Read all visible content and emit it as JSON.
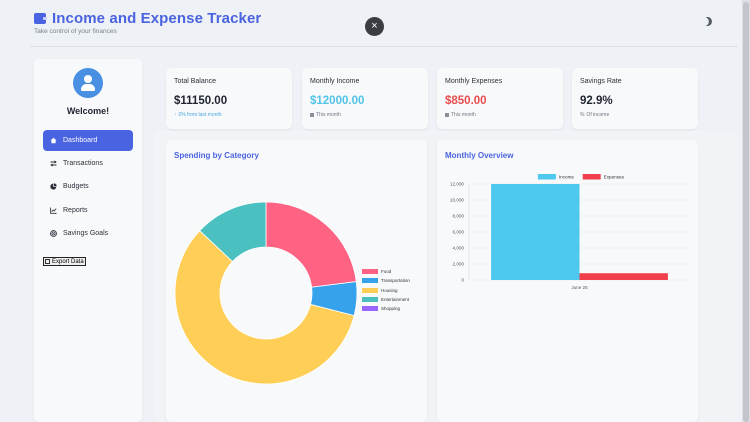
{
  "header": {
    "title": "Income and Expense Tracker",
    "subtitle": "Take control of your finances",
    "close_label": "×",
    "theme_icon": "moon-icon"
  },
  "sidebar": {
    "welcome": "Welcome!",
    "items": [
      {
        "label": "Dashboard",
        "icon": "home-icon",
        "active": true
      },
      {
        "label": "Transactions",
        "icon": "exchange-icon"
      },
      {
        "label": "Budgets",
        "icon": "pie-icon"
      },
      {
        "label": "Reports",
        "icon": "line-chart-icon"
      },
      {
        "label": "Savings Goals",
        "icon": "target-icon"
      }
    ],
    "export_label": "Export Data"
  },
  "stats": [
    {
      "label": "Total Balance",
      "value": "$11150.00",
      "note": "0% from last month",
      "color": "#1f2430",
      "note_color": "#4aa8e0"
    },
    {
      "label": "Monthly Income",
      "value": "$12000.00",
      "note": "This month",
      "color": "#4fc3e8",
      "note_color": "#6e7480"
    },
    {
      "label": "Monthly Expenses",
      "value": "$850.00",
      "note": "This month",
      "color": "#e84d4d",
      "note_color": "#6e7480"
    },
    {
      "label": "Savings Rate",
      "value": "92.9%",
      "note": "Of income",
      "color": "#1f2430",
      "note_color": "#6e7480"
    }
  ],
  "spending": {
    "title": "Spending by Category"
  },
  "overview": {
    "title": "Monthly Overview"
  },
  "chart_data": [
    {
      "type": "pie",
      "title": "Spending by Category",
      "categories": [
        "Food",
        "Transportation",
        "Housing",
        "Entertainment",
        "Shopping"
      ],
      "values": [
        23,
        6,
        58,
        13,
        0
      ],
      "unit": "percent of total (estimated)",
      "colors": [
        "#ff6384",
        "#36a2eb",
        "#ffce56",
        "#4bc0c0",
        "#9966ff"
      ],
      "donut": true,
      "legend": "right"
    },
    {
      "type": "bar",
      "title": "Monthly Overview",
      "categories": [
        "June 25"
      ],
      "series": [
        {
          "name": "Income",
          "values": [
            12000
          ],
          "color": "#4fc8f0"
        },
        {
          "name": "Expenses",
          "values": [
            850
          ],
          "color": "#f0404b"
        }
      ],
      "ylim": [
        0,
        12000
      ],
      "yticks": [
        "0",
        "2,000",
        "4,000",
        "6,000",
        "8,000",
        "10,000",
        "12,000"
      ],
      "grid": true,
      "legend": "top"
    }
  ]
}
